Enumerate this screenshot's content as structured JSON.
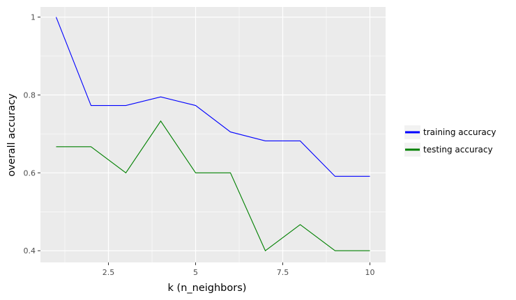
{
  "chart_data": {
    "type": "line",
    "title": "",
    "xlabel": "k (n_neighbors)",
    "ylabel": "overall accuracy",
    "x": [
      1,
      2,
      3,
      4,
      5,
      6,
      7,
      8,
      9,
      10
    ],
    "xlim": [
      0.55,
      10.45
    ],
    "ylim": [
      0.37,
      1.026
    ],
    "x_ticks": [
      2.5,
      5,
      7.5,
      10
    ],
    "x_tick_labels": [
      "2.5",
      "5",
      "7.5",
      "10"
    ],
    "x_minor_ticks": [
      1.25,
      3.75,
      6.25,
      8.75
    ],
    "y_ticks": [
      0.4,
      0.6,
      0.8,
      1.0
    ],
    "y_tick_labels": [
      "0.4",
      "0.6",
      "0.8",
      "1"
    ],
    "y_minor_ticks": [
      0.5,
      0.7,
      0.9
    ],
    "grid": true,
    "panel_background": "#ebebeb",
    "legend_position": "right",
    "series": [
      {
        "name": "training accuracy",
        "color": "#0000ff",
        "values": [
          1.0,
          0.773,
          0.773,
          0.795,
          0.773,
          0.705,
          0.682,
          0.682,
          0.591,
          0.591
        ]
      },
      {
        "name": "testing accuracy",
        "color": "#008000",
        "values": [
          0.667,
          0.667,
          0.6,
          0.733,
          0.6,
          0.6,
          0.4,
          0.467,
          0.4,
          0.4
        ]
      }
    ]
  }
}
